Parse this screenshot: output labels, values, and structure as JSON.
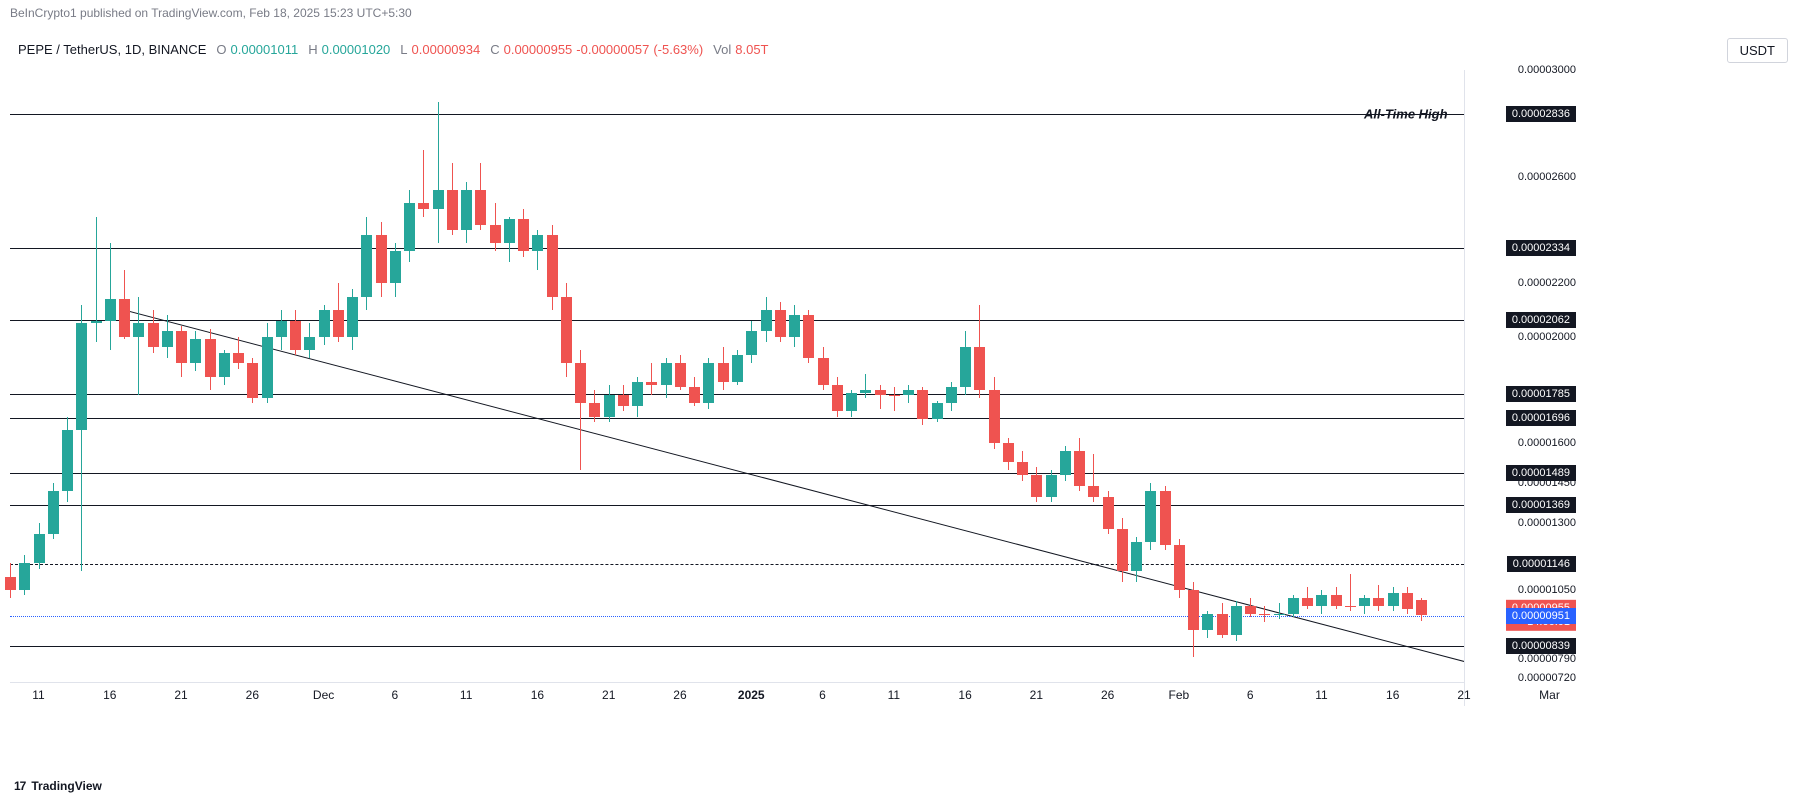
{
  "header": {
    "text": "BeInCrypto1 published on TradingView.com, Feb 18, 2025 15:23 UTC+5:30"
  },
  "symbol": {
    "pair": "PEPE / TetherUS",
    "interval": "1D",
    "exchange": "BINANCE"
  },
  "ohlc": {
    "o_lbl": "O",
    "o": "0.00001011",
    "h_lbl": "H",
    "h": "0.00001020",
    "l_lbl": "L",
    "l": "0.00000934",
    "c_lbl": "C",
    "c": "0.00000955",
    "chg": "-0.00000057",
    "pct": "(-5.63%)",
    "vol_lbl": "Vol",
    "vol": "8.05T"
  },
  "usdt_label": "USDT",
  "footer": {
    "logo": "17",
    "name": "TradingView"
  },
  "ath_text": "All-Time High",
  "price_axis": {
    "ymin": 7.2e-06,
    "ymax": 3e-05,
    "ticks": [
      {
        "v": 3e-05,
        "t": "0.00003000"
      },
      {
        "v": 2.6e-05,
        "t": "0.00002600"
      },
      {
        "v": 2.2e-05,
        "t": "0.00002200"
      },
      {
        "v": 2e-05,
        "t": "0.00002000"
      },
      {
        "v": 1.6e-05,
        "t": "0.00001600"
      },
      {
        "v": 1.45e-05,
        "t": "0.00001450"
      },
      {
        "v": 1.3e-05,
        "t": "0.00001300"
      },
      {
        "v": 1.05e-05,
        "t": "0.00001050"
      },
      {
        "v": 7.9e-06,
        "t": "0.00000790"
      },
      {
        "v": 7.2e-06,
        "t": "0.00000720"
      }
    ],
    "levels": [
      {
        "v": 2.836e-05,
        "t": "0.00002836"
      },
      {
        "v": 2.334e-05,
        "t": "0.00002334"
      },
      {
        "v": 2.062e-05,
        "t": "0.00002062"
      },
      {
        "v": 1.785e-05,
        "t": "0.00001785"
      },
      {
        "v": 1.696e-05,
        "t": "0.00001696"
      },
      {
        "v": 1.489e-05,
        "t": "0.00001489"
      },
      {
        "v": 1.369e-05,
        "t": "0.00001369"
      },
      {
        "v": 1.146e-05,
        "t": "0.00001146",
        "dashed": true
      },
      {
        "v": 8.39e-06,
        "t": "0.00000839"
      }
    ],
    "current": {
      "v": 9.55e-06,
      "t": "0.00000955",
      "countdown": "14:06:01"
    },
    "blue": {
      "v": 9.51e-06,
      "t": "0.00000951"
    }
  },
  "time_axis": {
    "xmin": 0,
    "xmax": 102,
    "ticks": [
      {
        "i": 2,
        "t": "11"
      },
      {
        "i": 7,
        "t": "16"
      },
      {
        "i": 12,
        "t": "21"
      },
      {
        "i": 17,
        "t": "26"
      },
      {
        "i": 22,
        "t": "Dec"
      },
      {
        "i": 27,
        "t": "6"
      },
      {
        "i": 32,
        "t": "11"
      },
      {
        "i": 37,
        "t": "16"
      },
      {
        "i": 42,
        "t": "21"
      },
      {
        "i": 47,
        "t": "26"
      },
      {
        "i": 52,
        "t": "2025",
        "bold": true
      },
      {
        "i": 57,
        "t": "6"
      },
      {
        "i": 62,
        "t": "11"
      },
      {
        "i": 67,
        "t": "16"
      },
      {
        "i": 72,
        "t": "21"
      },
      {
        "i": 77,
        "t": "26"
      },
      {
        "i": 82,
        "t": "Feb"
      },
      {
        "i": 87,
        "t": "6"
      },
      {
        "i": 92,
        "t": "11"
      },
      {
        "i": 97,
        "t": "16"
      },
      {
        "i": 102,
        "t": "21"
      },
      {
        "i": 108,
        "t": "Mar"
      }
    ]
  },
  "trendline": {
    "x1_i": 8,
    "y1_v": 2.1e-05,
    "x2_i": 105,
    "y2_v": 7.4e-06
  },
  "colors": {
    "up": "#26a69a",
    "down": "#ef5350",
    "grid": "#e0e3eb",
    "text_muted": "#787b86",
    "black": "#131722",
    "blue": "#2962ff",
    "bg": "#ffffff"
  },
  "candles": [
    {
      "i": 0,
      "o": 1.1e-05,
      "h": 1.15e-05,
      "l": 1.02e-05,
      "c": 1.05e-05,
      "d": "dn"
    },
    {
      "i": 1,
      "o": 1.05e-05,
      "h": 1.18e-05,
      "l": 1.03e-05,
      "c": 1.15e-05,
      "d": "up"
    },
    {
      "i": 2,
      "o": 1.15e-05,
      "h": 1.3e-05,
      "l": 1.13e-05,
      "c": 1.26e-05,
      "d": "up"
    },
    {
      "i": 3,
      "o": 1.26e-05,
      "h": 1.45e-05,
      "l": 1.24e-05,
      "c": 1.42e-05,
      "d": "up"
    },
    {
      "i": 4,
      "o": 1.42e-05,
      "h": 1.7e-05,
      "l": 1.38e-05,
      "c": 1.65e-05,
      "d": "up"
    },
    {
      "i": 5,
      "o": 1.65e-05,
      "h": 2.12e-05,
      "l": 1.12e-05,
      "c": 2.05e-05,
      "d": "up"
    },
    {
      "i": 6,
      "o": 2.05e-05,
      "h": 2.45e-05,
      "l": 1.98e-05,
      "c": 2.06e-05,
      "d": "up"
    },
    {
      "i": 7,
      "o": 2.06e-05,
      "h": 2.35e-05,
      "l": 1.95e-05,
      "c": 2.14e-05,
      "d": "up"
    },
    {
      "i": 8,
      "o": 2.14e-05,
      "h": 2.25e-05,
      "l": 1.99e-05,
      "c": 2e-05,
      "d": "dn"
    },
    {
      "i": 9,
      "o": 2e-05,
      "h": 2.15e-05,
      "l": 1.78e-05,
      "c": 2.05e-05,
      "d": "up"
    },
    {
      "i": 10,
      "o": 2.05e-05,
      "h": 2.1e-05,
      "l": 1.94e-05,
      "c": 1.96e-05,
      "d": "dn"
    },
    {
      "i": 11,
      "o": 1.96e-05,
      "h": 2.08e-05,
      "l": 1.92e-05,
      "c": 2.02e-05,
      "d": "up"
    },
    {
      "i": 12,
      "o": 2.02e-05,
      "h": 2.04e-05,
      "l": 1.85e-05,
      "c": 1.9e-05,
      "d": "dn"
    },
    {
      "i": 13,
      "o": 1.9e-05,
      "h": 2.02e-05,
      "l": 1.87e-05,
      "c": 1.99e-05,
      "d": "up"
    },
    {
      "i": 14,
      "o": 1.99e-05,
      "h": 2.03e-05,
      "l": 1.8e-05,
      "c": 1.85e-05,
      "d": "dn"
    },
    {
      "i": 15,
      "o": 1.85e-05,
      "h": 1.95e-05,
      "l": 1.82e-05,
      "c": 1.94e-05,
      "d": "up"
    },
    {
      "i": 16,
      "o": 1.94e-05,
      "h": 2e-05,
      "l": 1.88e-05,
      "c": 1.9e-05,
      "d": "dn"
    },
    {
      "i": 17,
      "o": 1.9e-05,
      "h": 1.92e-05,
      "l": 1.75e-05,
      "c": 1.77e-05,
      "d": "dn"
    },
    {
      "i": 18,
      "o": 1.77e-05,
      "h": 2.05e-05,
      "l": 1.75e-05,
      "c": 2e-05,
      "d": "up"
    },
    {
      "i": 19,
      "o": 2e-05,
      "h": 2.1e-05,
      "l": 1.95e-05,
      "c": 2.06e-05,
      "d": "up"
    },
    {
      "i": 20,
      "o": 2.06e-05,
      "h": 2.1e-05,
      "l": 1.93e-05,
      "c": 1.95e-05,
      "d": "dn"
    },
    {
      "i": 21,
      "o": 1.95e-05,
      "h": 2.05e-05,
      "l": 1.92e-05,
      "c": 2e-05,
      "d": "up"
    },
    {
      "i": 22,
      "o": 2e-05,
      "h": 2.12e-05,
      "l": 1.97e-05,
      "c": 2.1e-05,
      "d": "up"
    },
    {
      "i": 23,
      "o": 2.1e-05,
      "h": 2.2e-05,
      "l": 1.98e-05,
      "c": 2e-05,
      "d": "dn"
    },
    {
      "i": 24,
      "o": 2e-05,
      "h": 2.18e-05,
      "l": 1.95e-05,
      "c": 2.15e-05,
      "d": "up"
    },
    {
      "i": 25,
      "o": 2.15e-05,
      "h": 2.45e-05,
      "l": 2.1e-05,
      "c": 2.38e-05,
      "d": "up"
    },
    {
      "i": 26,
      "o": 2.38e-05,
      "h": 2.43e-05,
      "l": 2.15e-05,
      "c": 2.2e-05,
      "d": "dn"
    },
    {
      "i": 27,
      "o": 2.2e-05,
      "h": 2.35e-05,
      "l": 2.15e-05,
      "c": 2.32e-05,
      "d": "up"
    },
    {
      "i": 28,
      "o": 2.32e-05,
      "h": 2.55e-05,
      "l": 2.28e-05,
      "c": 2.5e-05,
      "d": "up"
    },
    {
      "i": 29,
      "o": 2.5e-05,
      "h": 2.7e-05,
      "l": 2.45e-05,
      "c": 2.48e-05,
      "d": "dn"
    },
    {
      "i": 30,
      "o": 2.48e-05,
      "h": 2.88e-05,
      "l": 2.35e-05,
      "c": 2.55e-05,
      "d": "up"
    },
    {
      "i": 31,
      "o": 2.55e-05,
      "h": 2.65e-05,
      "l": 2.38e-05,
      "c": 2.4e-05,
      "d": "dn"
    },
    {
      "i": 32,
      "o": 2.4e-05,
      "h": 2.58e-05,
      "l": 2.35e-05,
      "c": 2.55e-05,
      "d": "up"
    },
    {
      "i": 33,
      "o": 2.55e-05,
      "h": 2.65e-05,
      "l": 2.4e-05,
      "c": 2.42e-05,
      "d": "dn"
    },
    {
      "i": 34,
      "o": 2.42e-05,
      "h": 2.5e-05,
      "l": 2.32e-05,
      "c": 2.35e-05,
      "d": "dn"
    },
    {
      "i": 35,
      "o": 2.35e-05,
      "h": 2.45e-05,
      "l": 2.28e-05,
      "c": 2.44e-05,
      "d": "up"
    },
    {
      "i": 36,
      "o": 2.44e-05,
      "h": 2.48e-05,
      "l": 2.3e-05,
      "c": 2.32e-05,
      "d": "dn"
    },
    {
      "i": 37,
      "o": 2.32e-05,
      "h": 2.4e-05,
      "l": 2.25e-05,
      "c": 2.38e-05,
      "d": "up"
    },
    {
      "i": 38,
      "o": 2.38e-05,
      "h": 2.42e-05,
      "l": 2.1e-05,
      "c": 2.15e-05,
      "d": "dn"
    },
    {
      "i": 39,
      "o": 2.15e-05,
      "h": 2.2e-05,
      "l": 1.85e-05,
      "c": 1.9e-05,
      "d": "dn"
    },
    {
      "i": 40,
      "o": 1.9e-05,
      "h": 1.95e-05,
      "l": 1.5e-05,
      "c": 1.75e-05,
      "d": "dn"
    },
    {
      "i": 41,
      "o": 1.75e-05,
      "h": 1.8e-05,
      "l": 1.68e-05,
      "c": 1.7e-05,
      "d": "dn"
    },
    {
      "i": 42,
      "o": 1.7e-05,
      "h": 1.82e-05,
      "l": 1.68e-05,
      "c": 1.78e-05,
      "d": "up"
    },
    {
      "i": 43,
      "o": 1.78e-05,
      "h": 1.82e-05,
      "l": 1.72e-05,
      "c": 1.74e-05,
      "d": "dn"
    },
    {
      "i": 44,
      "o": 1.74e-05,
      "h": 1.85e-05,
      "l": 1.7e-05,
      "c": 1.83e-05,
      "d": "up"
    },
    {
      "i": 45,
      "o": 1.83e-05,
      "h": 1.9e-05,
      "l": 1.78e-05,
      "c": 1.82e-05,
      "d": "dn"
    },
    {
      "i": 46,
      "o": 1.82e-05,
      "h": 1.92e-05,
      "l": 1.77e-05,
      "c": 1.9e-05,
      "d": "up"
    },
    {
      "i": 47,
      "o": 1.9e-05,
      "h": 1.93e-05,
      "l": 1.8e-05,
      "c": 1.81e-05,
      "d": "dn"
    },
    {
      "i": 48,
      "o": 1.81e-05,
      "h": 1.85e-05,
      "l": 1.74e-05,
      "c": 1.75e-05,
      "d": "dn"
    },
    {
      "i": 49,
      "o": 1.75e-05,
      "h": 1.92e-05,
      "l": 1.73e-05,
      "c": 1.9e-05,
      "d": "up"
    },
    {
      "i": 50,
      "o": 1.9e-05,
      "h": 1.96e-05,
      "l": 1.8e-05,
      "c": 1.83e-05,
      "d": "dn"
    },
    {
      "i": 51,
      "o": 1.83e-05,
      "h": 1.95e-05,
      "l": 1.82e-05,
      "c": 1.93e-05,
      "d": "up"
    },
    {
      "i": 52,
      "o": 1.93e-05,
      "h": 2.06e-05,
      "l": 1.9e-05,
      "c": 2.02e-05,
      "d": "up"
    },
    {
      "i": 53,
      "o": 2.02e-05,
      "h": 2.15e-05,
      "l": 1.98e-05,
      "c": 2.1e-05,
      "d": "up"
    },
    {
      "i": 54,
      "o": 2.1e-05,
      "h": 2.13e-05,
      "l": 1.98e-05,
      "c": 2e-05,
      "d": "dn"
    },
    {
      "i": 55,
      "o": 2e-05,
      "h": 2.12e-05,
      "l": 1.96e-05,
      "c": 2.08e-05,
      "d": "up"
    },
    {
      "i": 56,
      "o": 2.08e-05,
      "h": 2.1e-05,
      "l": 1.9e-05,
      "c": 1.92e-05,
      "d": "dn"
    },
    {
      "i": 57,
      "o": 1.92e-05,
      "h": 1.96e-05,
      "l": 1.8e-05,
      "c": 1.82e-05,
      "d": "dn"
    },
    {
      "i": 58,
      "o": 1.82e-05,
      "h": 1.85e-05,
      "l": 1.7e-05,
      "c": 1.72e-05,
      "d": "dn"
    },
    {
      "i": 59,
      "o": 1.72e-05,
      "h": 1.8e-05,
      "l": 1.7e-05,
      "c": 1.79e-05,
      "d": "up"
    },
    {
      "i": 60,
      "o": 1.79e-05,
      "h": 1.86e-05,
      "l": 1.77e-05,
      "c": 1.8e-05,
      "d": "up"
    },
    {
      "i": 61,
      "o": 1.8e-05,
      "h": 1.82e-05,
      "l": 1.73e-05,
      "c": 1.78e-05,
      "d": "dn"
    },
    {
      "i": 62,
      "o": 1.78e-05,
      "h": 1.81e-05,
      "l": 1.72e-05,
      "c": 1.78e-05,
      "d": "dn"
    },
    {
      "i": 63,
      "o": 1.78e-05,
      "h": 1.82e-05,
      "l": 1.75e-05,
      "c": 1.8e-05,
      "d": "up"
    },
    {
      "i": 64,
      "o": 1.8e-05,
      "h": 1.81e-05,
      "l": 1.67e-05,
      "c": 1.69e-05,
      "d": "dn"
    },
    {
      "i": 65,
      "o": 1.69e-05,
      "h": 1.76e-05,
      "l": 1.68e-05,
      "c": 1.75e-05,
      "d": "up"
    },
    {
      "i": 66,
      "o": 1.75e-05,
      "h": 1.83e-05,
      "l": 1.72e-05,
      "c": 1.81e-05,
      "d": "up"
    },
    {
      "i": 67,
      "o": 1.81e-05,
      "h": 2.02e-05,
      "l": 1.78e-05,
      "c": 1.96e-05,
      "d": "up"
    },
    {
      "i": 68,
      "o": 1.96e-05,
      "h": 2.12e-05,
      "l": 1.77e-05,
      "c": 1.8e-05,
      "d": "dn"
    },
    {
      "i": 69,
      "o": 1.8e-05,
      "h": 1.85e-05,
      "l": 1.58e-05,
      "c": 1.6e-05,
      "d": "dn"
    },
    {
      "i": 70,
      "o": 1.6e-05,
      "h": 1.62e-05,
      "l": 1.5e-05,
      "c": 1.53e-05,
      "d": "dn"
    },
    {
      "i": 71,
      "o": 1.53e-05,
      "h": 1.57e-05,
      "l": 1.46e-05,
      "c": 1.48e-05,
      "d": "dn"
    },
    {
      "i": 72,
      "o": 1.48e-05,
      "h": 1.51e-05,
      "l": 1.38e-05,
      "c": 1.4e-05,
      "d": "dn"
    },
    {
      "i": 73,
      "o": 1.4e-05,
      "h": 1.5e-05,
      "l": 1.38e-05,
      "c": 1.48e-05,
      "d": "up"
    },
    {
      "i": 74,
      "o": 1.48e-05,
      "h": 1.59e-05,
      "l": 1.46e-05,
      "c": 1.57e-05,
      "d": "up"
    },
    {
      "i": 75,
      "o": 1.57e-05,
      "h": 1.62e-05,
      "l": 1.42e-05,
      "c": 1.44e-05,
      "d": "dn"
    },
    {
      "i": 76,
      "o": 1.44e-05,
      "h": 1.56e-05,
      "l": 1.38e-05,
      "c": 1.4e-05,
      "d": "dn"
    },
    {
      "i": 77,
      "o": 1.4e-05,
      "h": 1.42e-05,
      "l": 1.26e-05,
      "c": 1.28e-05,
      "d": "dn"
    },
    {
      "i": 78,
      "o": 1.28e-05,
      "h": 1.32e-05,
      "l": 1.08e-05,
      "c": 1.12e-05,
      "d": "dn"
    },
    {
      "i": 79,
      "o": 1.12e-05,
      "h": 1.25e-05,
      "l": 1.08e-05,
      "c": 1.23e-05,
      "d": "up"
    },
    {
      "i": 80,
      "o": 1.23e-05,
      "h": 1.45e-05,
      "l": 1.2e-05,
      "c": 1.42e-05,
      "d": "up"
    },
    {
      "i": 81,
      "o": 1.42e-05,
      "h": 1.44e-05,
      "l": 1.2e-05,
      "c": 1.22e-05,
      "d": "dn"
    },
    {
      "i": 82,
      "o": 1.22e-05,
      "h": 1.24e-05,
      "l": 1.02e-05,
      "c": 1.05e-05,
      "d": "dn"
    },
    {
      "i": 83,
      "o": 1.05e-05,
      "h": 1.08e-05,
      "l": 8e-06,
      "c": 9e-06,
      "d": "dn"
    },
    {
      "i": 84,
      "o": 9e-06,
      "h": 9.7e-06,
      "l": 8.7e-06,
      "c": 9.6e-06,
      "d": "up"
    },
    {
      "i": 85,
      "o": 9.6e-06,
      "h": 1e-05,
      "l": 8.7e-06,
      "c": 8.8e-06,
      "d": "dn"
    },
    {
      "i": 86,
      "o": 8.8e-06,
      "h": 1.01e-05,
      "l": 8.6e-06,
      "c": 9.9e-06,
      "d": "up"
    },
    {
      "i": 87,
      "o": 9.9e-06,
      "h": 1.02e-05,
      "l": 9.5e-06,
      "c": 9.6e-06,
      "d": "dn"
    },
    {
      "i": 88,
      "o": 9.6e-06,
      "h": 9.9e-06,
      "l": 9.3e-06,
      "c": 9.6e-06,
      "d": "dn"
    },
    {
      "i": 89,
      "o": 9.6e-06,
      "h": 1e-05,
      "l": 9.4e-06,
      "c": 9.6e-06,
      "d": "up"
    },
    {
      "i": 90,
      "o": 9.6e-06,
      "h": 1.03e-05,
      "l": 9.5e-06,
      "c": 1.02e-05,
      "d": "up"
    },
    {
      "i": 91,
      "o": 1.02e-05,
      "h": 1.06e-05,
      "l": 9.8e-06,
      "c": 9.9e-06,
      "d": "dn"
    },
    {
      "i": 92,
      "o": 9.9e-06,
      "h": 1.05e-05,
      "l": 9.6e-06,
      "c": 1.03e-05,
      "d": "up"
    },
    {
      "i": 93,
      "o": 1.03e-05,
      "h": 1.06e-05,
      "l": 9.8e-06,
      "c": 9.9e-06,
      "d": "dn"
    },
    {
      "i": 94,
      "o": 9.9e-06,
      "h": 1.11e-05,
      "l": 9.7e-06,
      "c": 9.9e-06,
      "d": "dn"
    },
    {
      "i": 95,
      "o": 9.9e-06,
      "h": 1.03e-05,
      "l": 9.6e-06,
      "c": 1.02e-05,
      "d": "up"
    },
    {
      "i": 96,
      "o": 1.02e-05,
      "h": 1.07e-05,
      "l": 9.7e-06,
      "c": 9.9e-06,
      "d": "dn"
    },
    {
      "i": 97,
      "o": 9.9e-06,
      "h": 1.06e-05,
      "l": 9.7e-06,
      "c": 1.04e-05,
      "d": "up"
    },
    {
      "i": 98,
      "o": 1.04e-05,
      "h": 1.06e-05,
      "l": 9.6e-06,
      "c": 9.8e-06,
      "d": "dn"
    },
    {
      "i": 99,
      "o": 1.011e-05,
      "h": 1.02e-05,
      "l": 9.34e-06,
      "c": 9.55e-06,
      "d": "dn"
    }
  ]
}
